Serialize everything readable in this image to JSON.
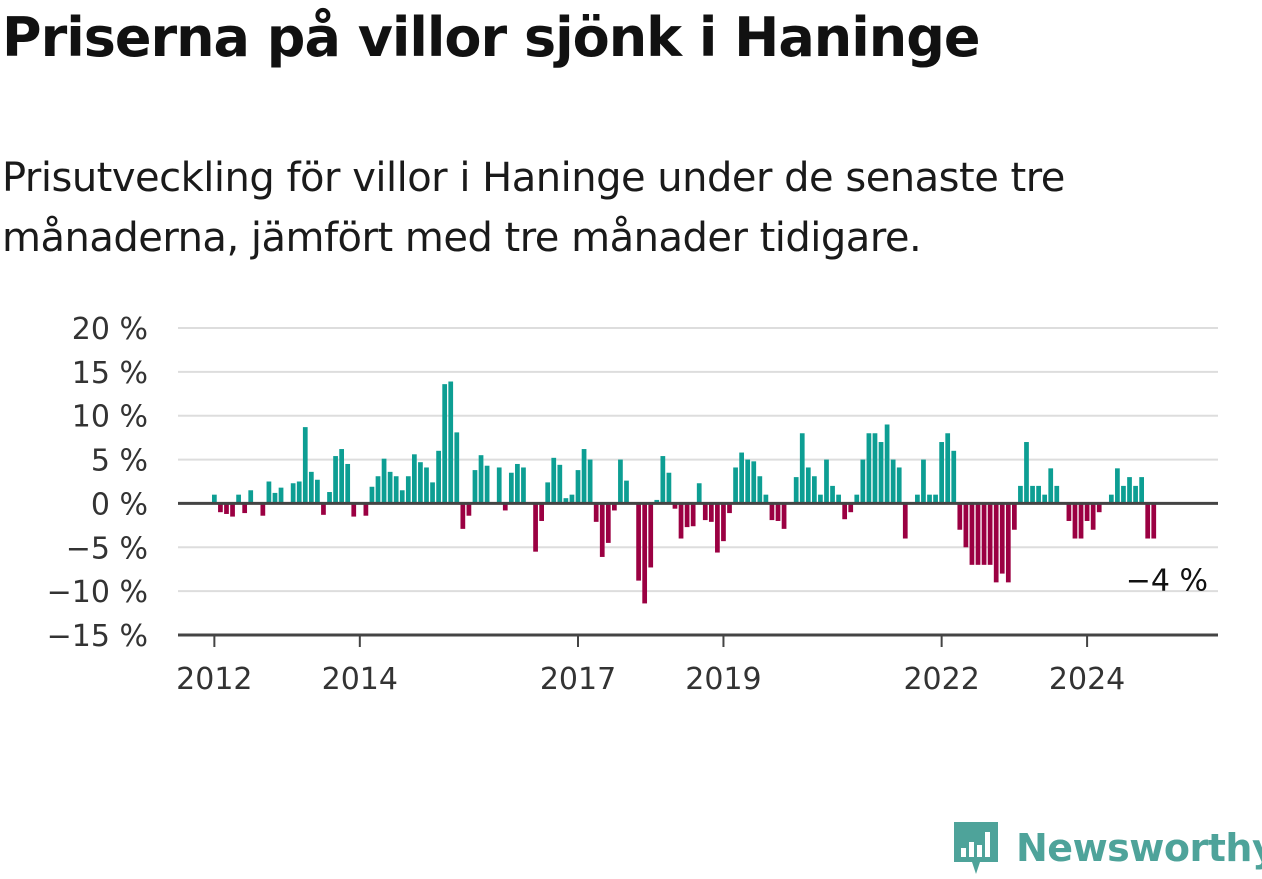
{
  "title": "Priserna på villor sjönk i Haninge",
  "subtitle": "Prisutveckling för villor i Haninge under de senaste tre månaderna, jämfört med tre månader tidigare.",
  "brand": {
    "name": "Newsworthy",
    "color": "#4ea39a"
  },
  "colors": {
    "positive": "#0d9e93",
    "negative": "#9b0042",
    "grid": "#dddddd",
    "axis": "#444444"
  },
  "end_label": "−4 %",
  "chart_data": {
    "type": "bar",
    "title": "Priserna på villor sjönk i Haninge",
    "xlabel": "",
    "ylabel": "",
    "ylim": [
      -15,
      20
    ],
    "y_ticks": [
      20,
      15,
      10,
      5,
      0,
      -5,
      -10,
      -15
    ],
    "y_tick_labels": [
      "20 %",
      "15 %",
      "10 %",
      "5 %",
      "0 %",
      "−5 %",
      "−10 %",
      "−15 %"
    ],
    "x_ticks": [
      "2012",
      "2014",
      "2017",
      "2019",
      "2022",
      "2024"
    ],
    "x_tick_positions": [
      2012.0,
      2014.0,
      2017.0,
      2019.0,
      2022.0,
      2024.0
    ],
    "x_start": 2011.5,
    "x_end": 2025.8,
    "grid": true,
    "series": [
      {
        "start": "2012-01",
        "frequency": "monthly",
        "values": [
          1,
          -1,
          -1.2,
          -1.5,
          1,
          -1.1,
          1.5,
          0,
          -1.4,
          2.5,
          1.2,
          1.8,
          0,
          2.3,
          2.5,
          8.7,
          3.6,
          2.7,
          -1.3,
          1.3,
          5.4,
          6.2,
          4.5,
          -1.5,
          0,
          -1.4,
          1.9,
          3.1,
          5.1,
          3.6,
          3.1,
          1.5,
          3.1,
          5.6,
          4.7,
          4.1,
          2.4,
          6,
          13.6,
          13.9,
          8.1,
          -2.9,
          -1.4,
          3.8,
          5.5,
          4.3,
          0,
          4.1,
          -0.8,
          3.5,
          4.5,
          4.1,
          0,
          -5.5,
          -2,
          2.4,
          5.2,
          4.4,
          0.6,
          1,
          3.8,
          6.2,
          5,
          -2.1,
          -6.1,
          -4.5,
          -0.8,
          5,
          2.6,
          0,
          -8.8,
          -11.4,
          -7.3,
          0.4,
          5.4,
          3.5,
          -0.6,
          -4,
          -2.7,
          -2.6,
          2.3,
          -1.9,
          -2.1,
          -5.6,
          -4.3,
          -1.1,
          4.1,
          5.8,
          5,
          4.8,
          3.1,
          1,
          -1.9,
          -2,
          -2.9,
          0,
          3,
          8,
          4.1,
          3.1,
          1,
          5,
          2,
          1,
          -1.8,
          -1,
          1,
          5,
          8,
          8,
          7,
          9,
          5,
          4.1,
          -4,
          0,
          1,
          5,
          1,
          1,
          7,
          8,
          6,
          -3,
          -5,
          -7,
          -7,
          -7,
          -7,
          -9,
          -8,
          -9,
          -3,
          2,
          7,
          2,
          2,
          1,
          4,
          2,
          0,
          -2,
          -4,
          -4,
          -2,
          -3,
          -1,
          0,
          1,
          4,
          2,
          3,
          2,
          3,
          -4,
          -4
        ]
      }
    ]
  }
}
